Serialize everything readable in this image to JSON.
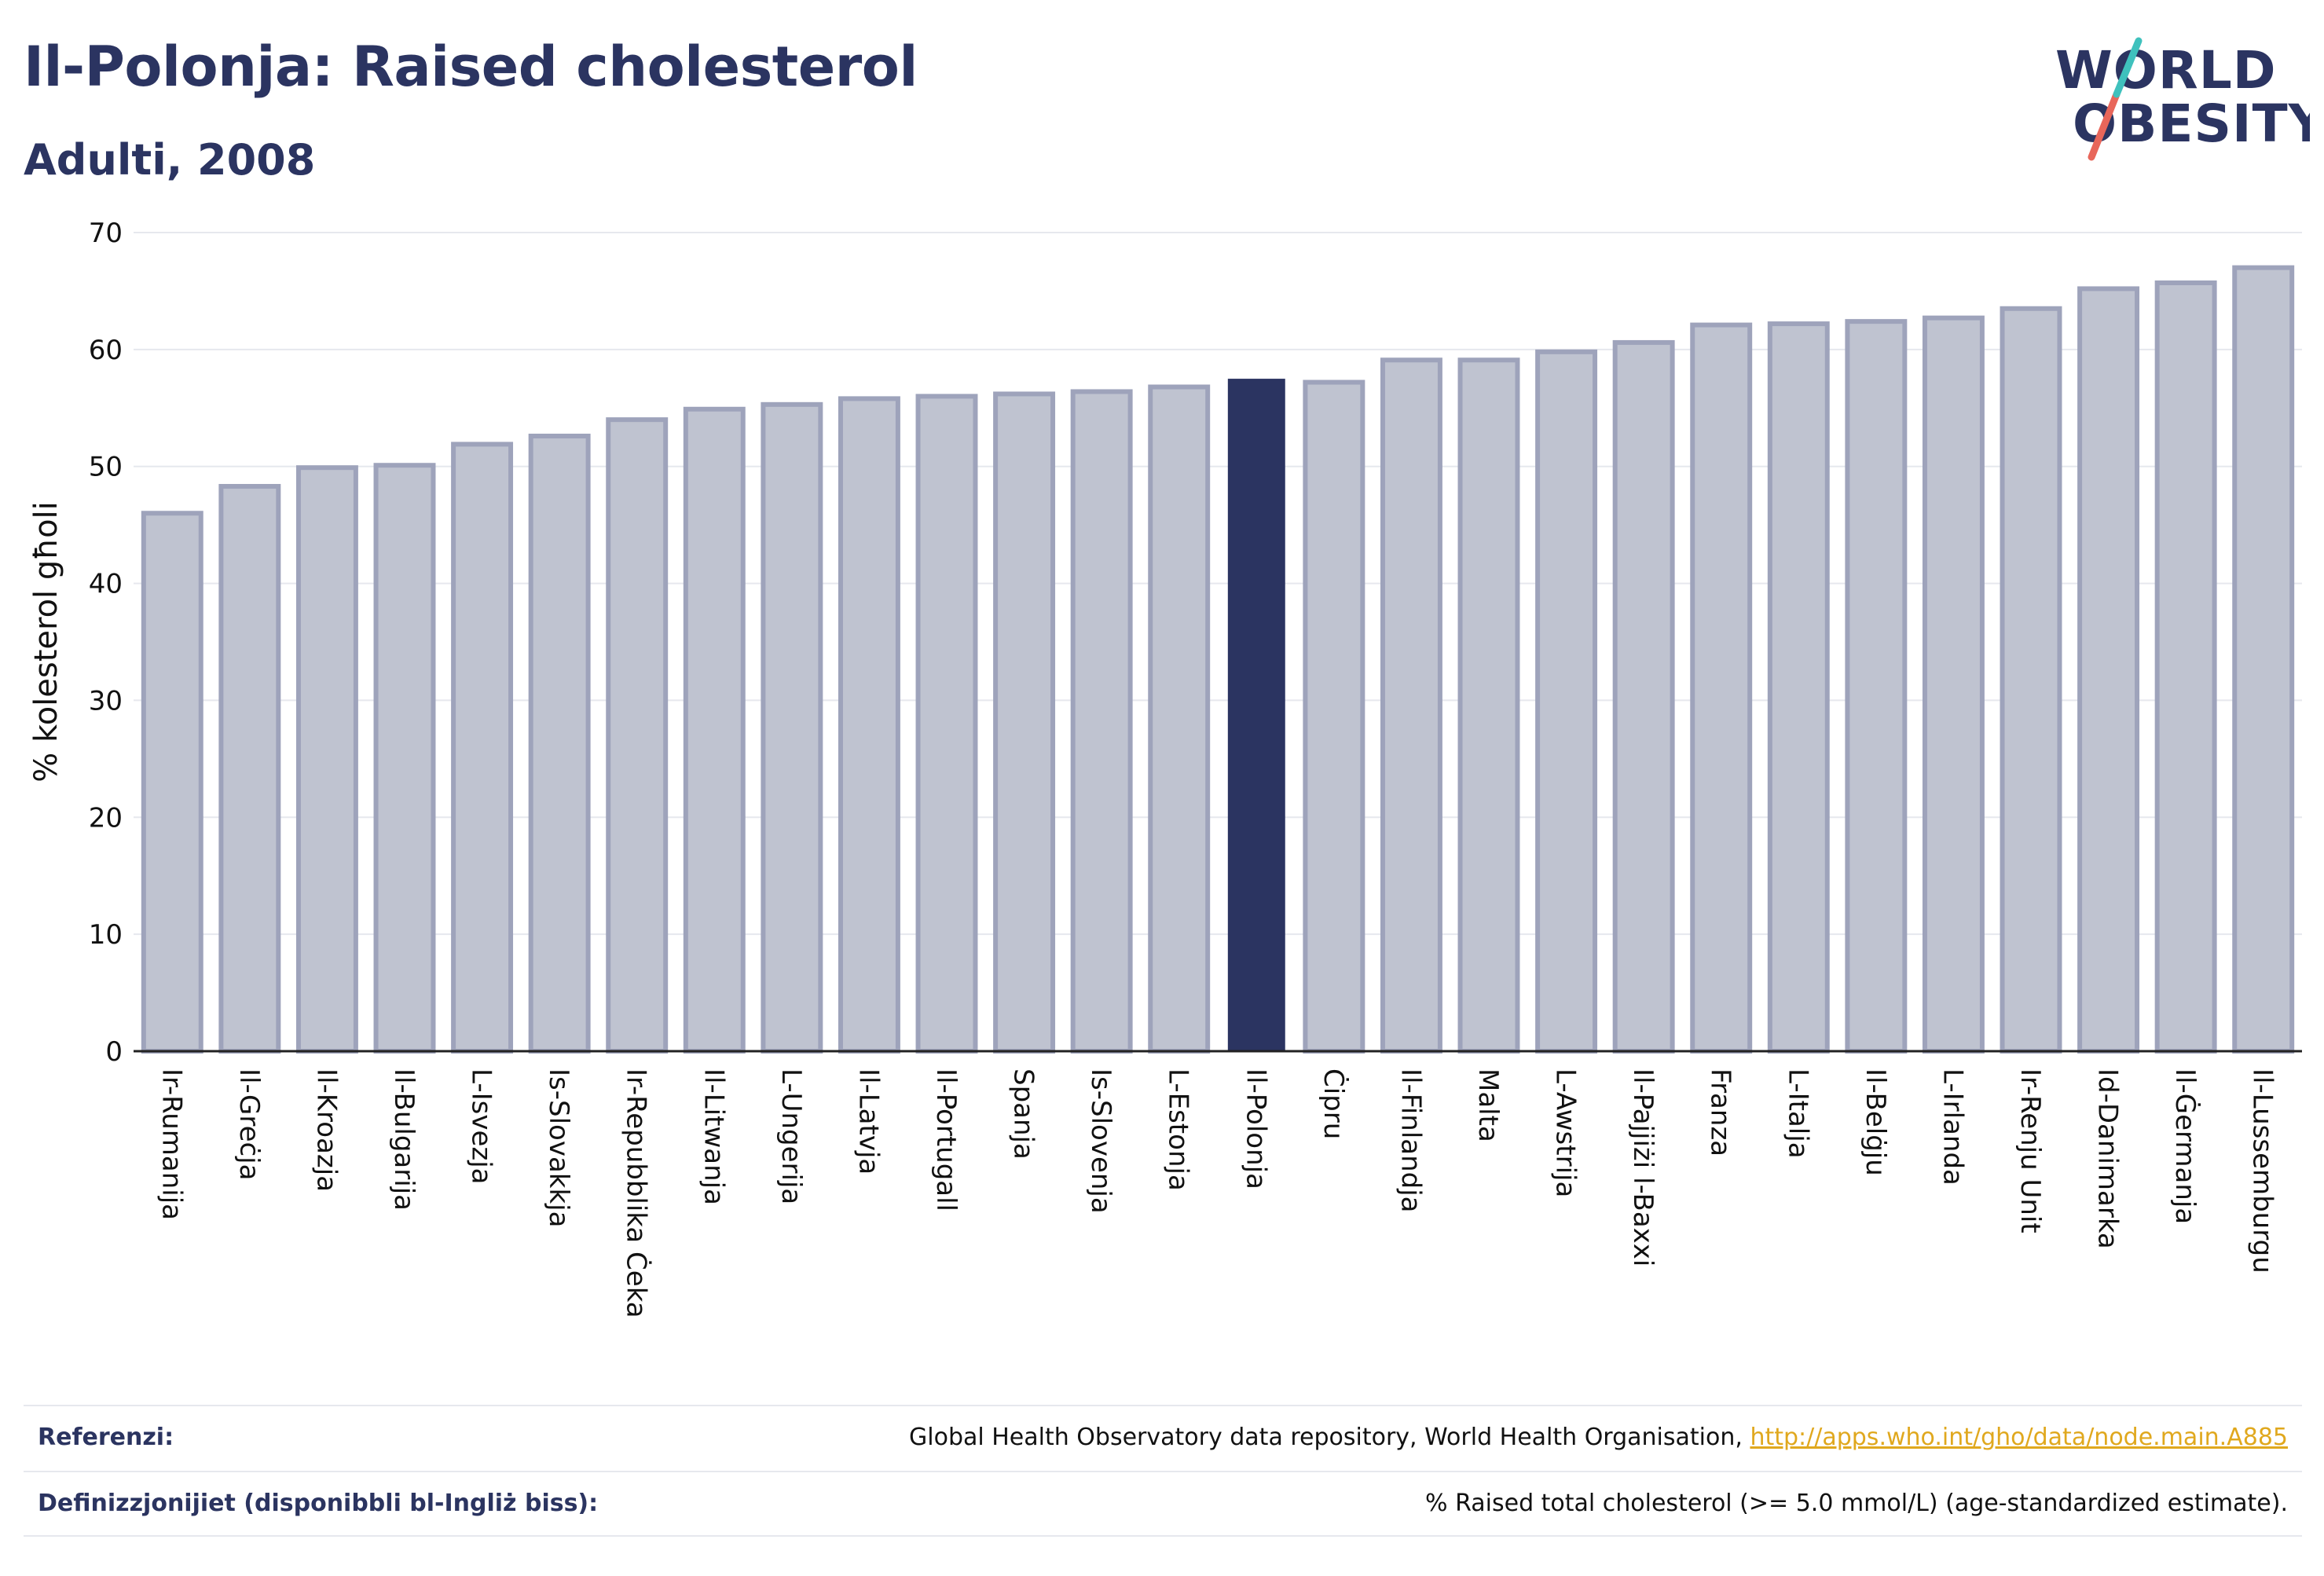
{
  "header": {
    "title": "Il-Polonja: Raised cholesterol",
    "subtitle": "Adulti, 2008"
  },
  "logo": {
    "line1": "WORLD",
    "line2": "OBESITY"
  },
  "chart_data": {
    "type": "bar",
    "ylabel": "% kolesterol għoli",
    "xlabel": "",
    "ylim": [
      0,
      70
    ],
    "yticks": [
      0,
      10,
      20,
      30,
      40,
      50,
      60,
      70
    ],
    "grid": true,
    "highlight": "Il-Polonja",
    "colors": {
      "bar": "#bfc3d0",
      "bar_edge": "#9ea3bb",
      "highlight": "#2b3461",
      "axis": "#222222",
      "grid": "#e6e8ee"
    },
    "categories": [
      "Ir-Rumanija",
      "Il-Greċja",
      "Il-Kroazja",
      "Il-Bulgarija",
      "L-Isvezja",
      "Is-Slovakkja",
      "Ir-Repubblika Ċeka",
      "Il-Litwanja",
      "L-Ungerija",
      "Il-Latvja",
      "Il-Portugall",
      "Spanja",
      "Is-Slovenja",
      "L-Estonja",
      "Il-Polonja",
      "Ċipru",
      "Il-Finlandja",
      "Malta",
      "L-Awstrija",
      "Il-Pajjiżi l-Baxxi",
      "Franza",
      "L-Italja",
      "Il-Belġju",
      "L-Irlanda",
      "Ir-Renju Unit",
      "Id-Danimarka",
      "Il-Ġermanja",
      "Il-Lussemburgu"
    ],
    "values": [
      46.0,
      48.3,
      49.9,
      50.1,
      51.9,
      52.6,
      54.0,
      54.9,
      55.3,
      55.8,
      56.0,
      56.2,
      56.4,
      56.8,
      57.5,
      57.2,
      59.1,
      59.1,
      59.8,
      60.6,
      62.1,
      62.2,
      62.4,
      62.7,
      63.5,
      65.2,
      65.7,
      67.0
    ]
  },
  "footer": {
    "references_label": "Referenzi:",
    "references_text": "Global Health Observatory data repository, World Health Organisation, ",
    "references_link": "http://apps.who.int/gho/data/node.main.A885",
    "definitions_label": "Definizzjonijiet (disponibbli bl-Ingliż biss):",
    "definitions_text": "% Raised total cholesterol (>= 5.0 mmol/L) (age-standardized estimate)."
  }
}
